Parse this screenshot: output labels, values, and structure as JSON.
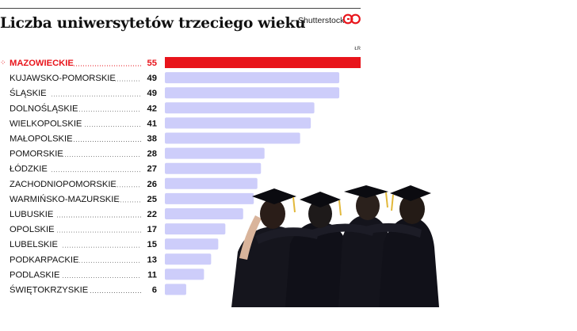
{
  "header": {
    "title": "Liczba uniwersytetów trzeciego wieku",
    "credit": "Shutterstock",
    "brand": "GP",
    "corner_tag": "ŁR"
  },
  "colors": {
    "highlight": "#e8141b",
    "bar": "#cdcdfa",
    "text": "#111111",
    "leader": "#777777"
  },
  "photo": {
    "description_icon": "graduates-photo-icon"
  },
  "chart_data": {
    "type": "bar",
    "orientation": "horizontal",
    "title": "Liczba uniwersytetów trzeciego wieku",
    "categories": [
      "MAZOWIECKIE",
      "KUJAWSKO-POMORSKIE",
      "ŚLĄSKIE",
      "DOLNOŚLĄSKIE",
      "WIELKOPOLSKIE",
      "MAŁOPOLSKIE",
      "POMORSKIE",
      "ŁÓDZKIE",
      "ZACHODNIOPOMORSKIE",
      "WARMIŃSKO-MAZURSKIE",
      "LUBUSKIE",
      "OPOLSKIE",
      "LUBELSKIE",
      "PODKARPACKIE",
      "PODLASKIE",
      "ŚWIĘTOKRZYSKIE"
    ],
    "values": [
      55,
      49,
      49,
      42,
      41,
      38,
      28,
      27,
      26,
      25,
      22,
      17,
      15,
      13,
      11,
      6
    ],
    "highlight_index": 0,
    "xlim": [
      0,
      55
    ],
    "grid": false,
    "legend": "none"
  }
}
